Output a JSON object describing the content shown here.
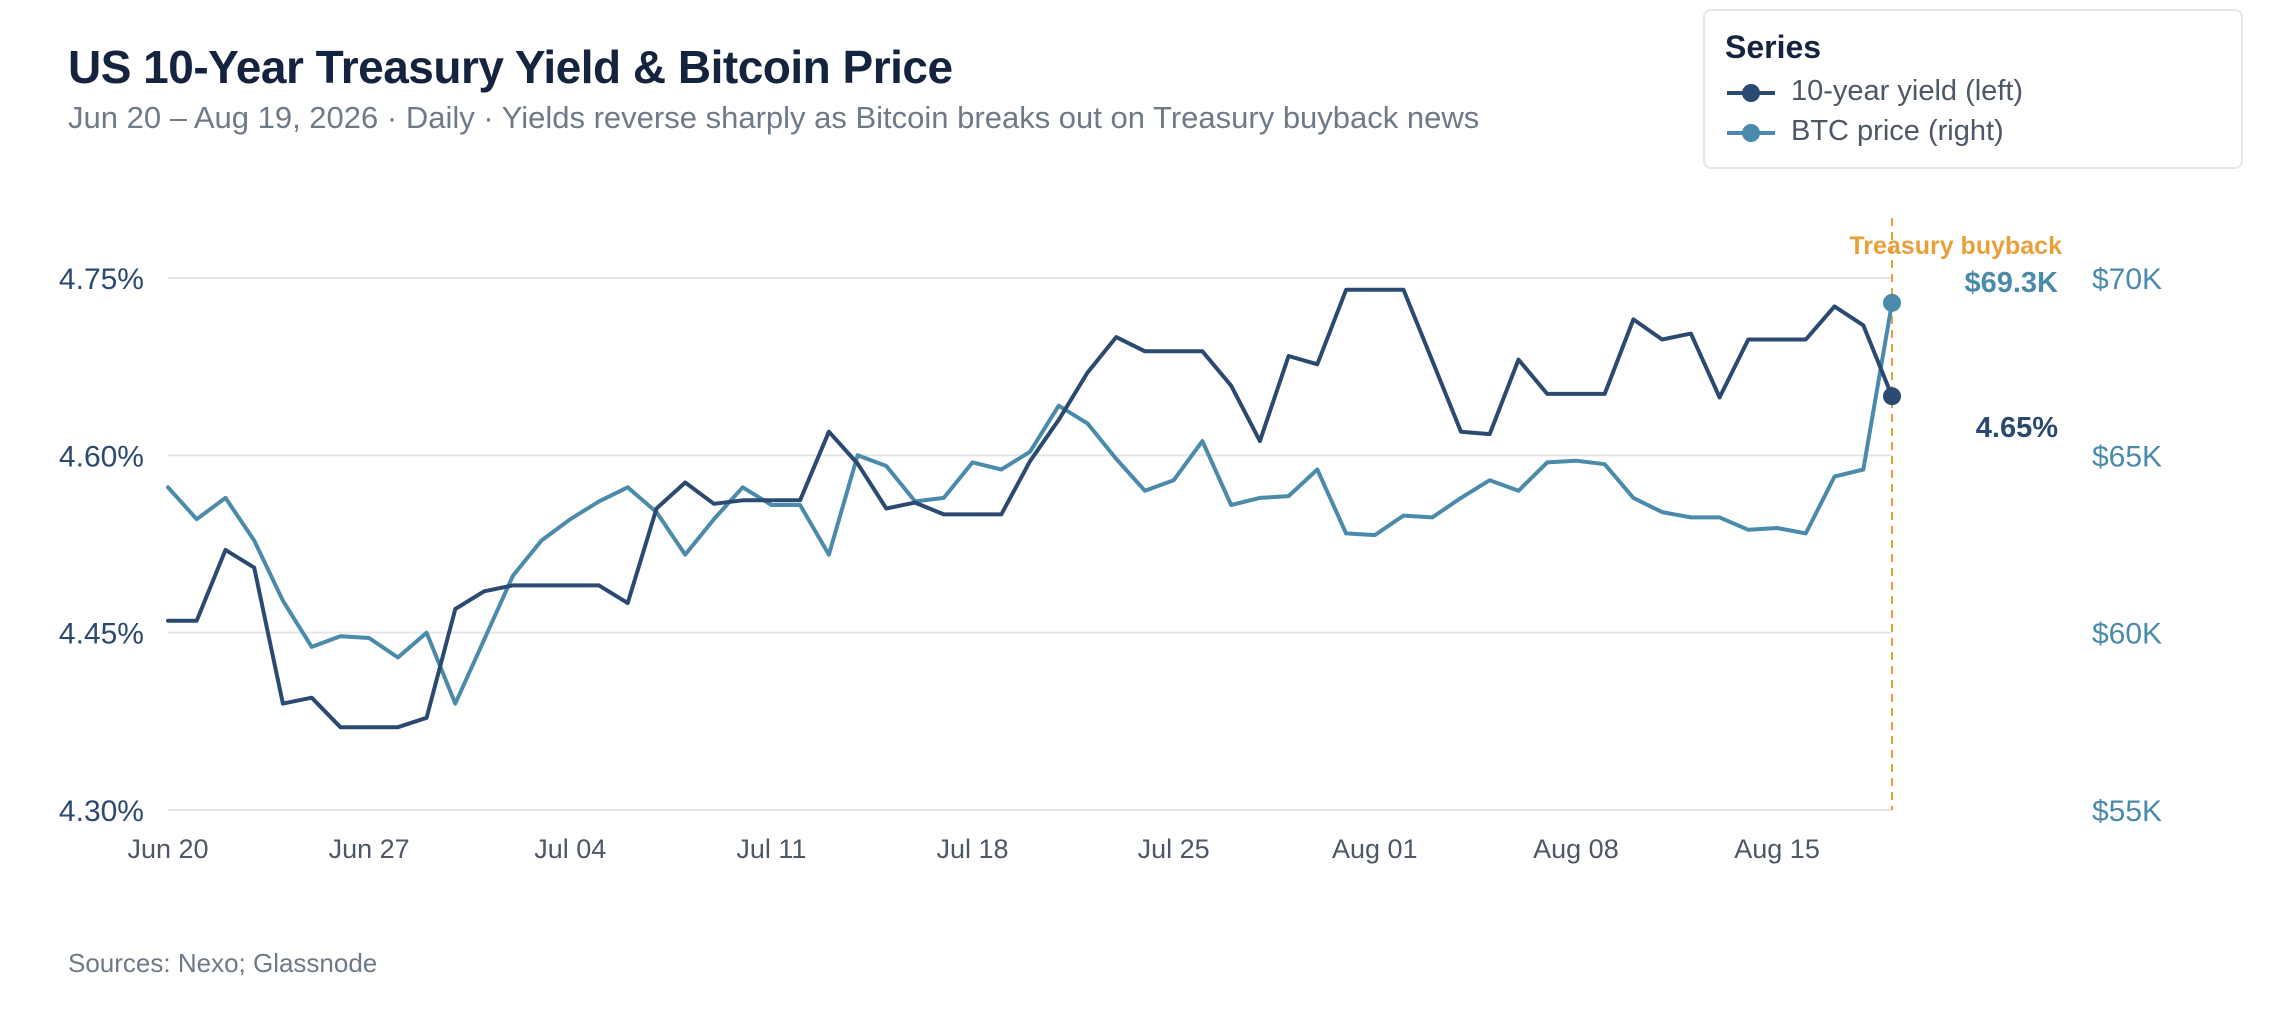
{
  "title": "US 10-Year Treasury Yield & Bitcoin Price",
  "subtitle": "Jun 20 – Aug 19, 2026 · Daily · Yields reverse sharply as Bitcoin breaks out on Treasury buyback news",
  "legend": {
    "title": "Series",
    "placement": "top-right",
    "items": [
      {
        "label": "10-year yield (left)",
        "color": "#2a4a72"
      },
      {
        "label": "BTC price (right)",
        "color": "#4a8aab"
      }
    ]
  },
  "sources": "Sources: Nexo; Glassnode",
  "chart_data": {
    "type": "line",
    "x": [
      "Jun 20",
      "Jun 21",
      "Jun 22",
      "Jun 23",
      "Jun 24",
      "Jun 25",
      "Jun 26",
      "Jun 27",
      "Jun 28",
      "Jun 29",
      "Jun 30",
      "Jul 01",
      "Jul 02",
      "Jul 03",
      "Jul 04",
      "Jul 05",
      "Jul 06",
      "Jul 07",
      "Jul 08",
      "Jul 09",
      "Jul 10",
      "Jul 11",
      "Jul 12",
      "Jul 13",
      "Jul 14",
      "Jul 15",
      "Jul 16",
      "Jul 17",
      "Jul 18",
      "Jul 19",
      "Jul 20",
      "Jul 21",
      "Jul 22",
      "Jul 23",
      "Jul 24",
      "Jul 25",
      "Jul 26",
      "Jul 27",
      "Jul 28",
      "Jul 29",
      "Jul 30",
      "Jul 31",
      "Aug 01",
      "Aug 02",
      "Aug 03",
      "Aug 04",
      "Aug 05",
      "Aug 06",
      "Aug 07",
      "Aug 08",
      "Aug 09",
      "Aug 10",
      "Aug 11",
      "Aug 12",
      "Aug 13",
      "Aug 14",
      "Aug 15",
      "Aug 16",
      "Aug 17",
      "Aug 18",
      "Aug 19"
    ],
    "x_ticks": [
      "Jun 20",
      "Jun 27",
      "Jul 04",
      "Jul 11",
      "Jul 18",
      "Jul 25",
      "Aug 01",
      "Aug 08",
      "Aug 15"
    ],
    "series": [
      {
        "name": "10-year yield (left)",
        "axis": "left",
        "color": "#2a4a72",
        "values": [
          4.46,
          4.46,
          4.52,
          4.505,
          4.39,
          4.395,
          4.37,
          4.37,
          4.37,
          4.378,
          4.47,
          4.485,
          4.49,
          4.49,
          4.49,
          4.49,
          4.475,
          4.555,
          4.577,
          4.559,
          4.562,
          4.562,
          4.562,
          4.62,
          4.593,
          4.555,
          4.56,
          4.55,
          4.55,
          4.55,
          4.595,
          4.63,
          4.67,
          4.7,
          4.688,
          4.688,
          4.688,
          4.659,
          4.612,
          4.684,
          4.677,
          4.74,
          4.74,
          4.74,
          4.68,
          4.62,
          4.618,
          4.681,
          4.652,
          4.652,
          4.652,
          4.715,
          4.698,
          4.703,
          4.649,
          4.698,
          4.698,
          4.698,
          4.726,
          4.71,
          4.65
        ]
      },
      {
        "name": "BTC price (right)",
        "axis": "right",
        "color": "#4a8aab",
        "values": [
          64.1,
          63.2,
          63.8,
          62.6,
          60.9,
          59.6,
          59.9,
          59.85,
          59.3,
          60.0,
          58.0,
          59.8,
          61.6,
          62.6,
          63.2,
          63.7,
          64.1,
          63.4,
          62.2,
          63.2,
          64.1,
          63.6,
          63.6,
          62.2,
          65.0,
          64.7,
          63.7,
          63.8,
          64.8,
          64.6,
          65.1,
          66.4,
          65.9,
          64.9,
          64.0,
          64.3,
          65.4,
          63.6,
          63.8,
          63.85,
          64.6,
          62.8,
          62.75,
          63.3,
          63.25,
          63.8,
          64.3,
          64.0,
          64.8,
          64.85,
          64.75,
          63.8,
          63.4,
          63.25,
          63.25,
          62.9,
          62.95,
          62.8,
          64.4,
          64.6,
          69.3
        ]
      }
    ],
    "y_left": {
      "ticks": [
        "4.30%",
        "4.45%",
        "4.60%",
        "4.75%"
      ],
      "range": [
        4.3,
        4.75
      ]
    },
    "y_right": {
      "ticks": [
        "$55K",
        "$60K",
        "$65K",
        "$70K"
      ],
      "range": [
        55,
        70
      ]
    },
    "end_labels": {
      "left": "4.65%",
      "right": "$69.3K"
    },
    "annotation": {
      "label": "Treasury buyback",
      "x": "Aug 19",
      "color": "#e8a03b"
    },
    "grid": true
  }
}
